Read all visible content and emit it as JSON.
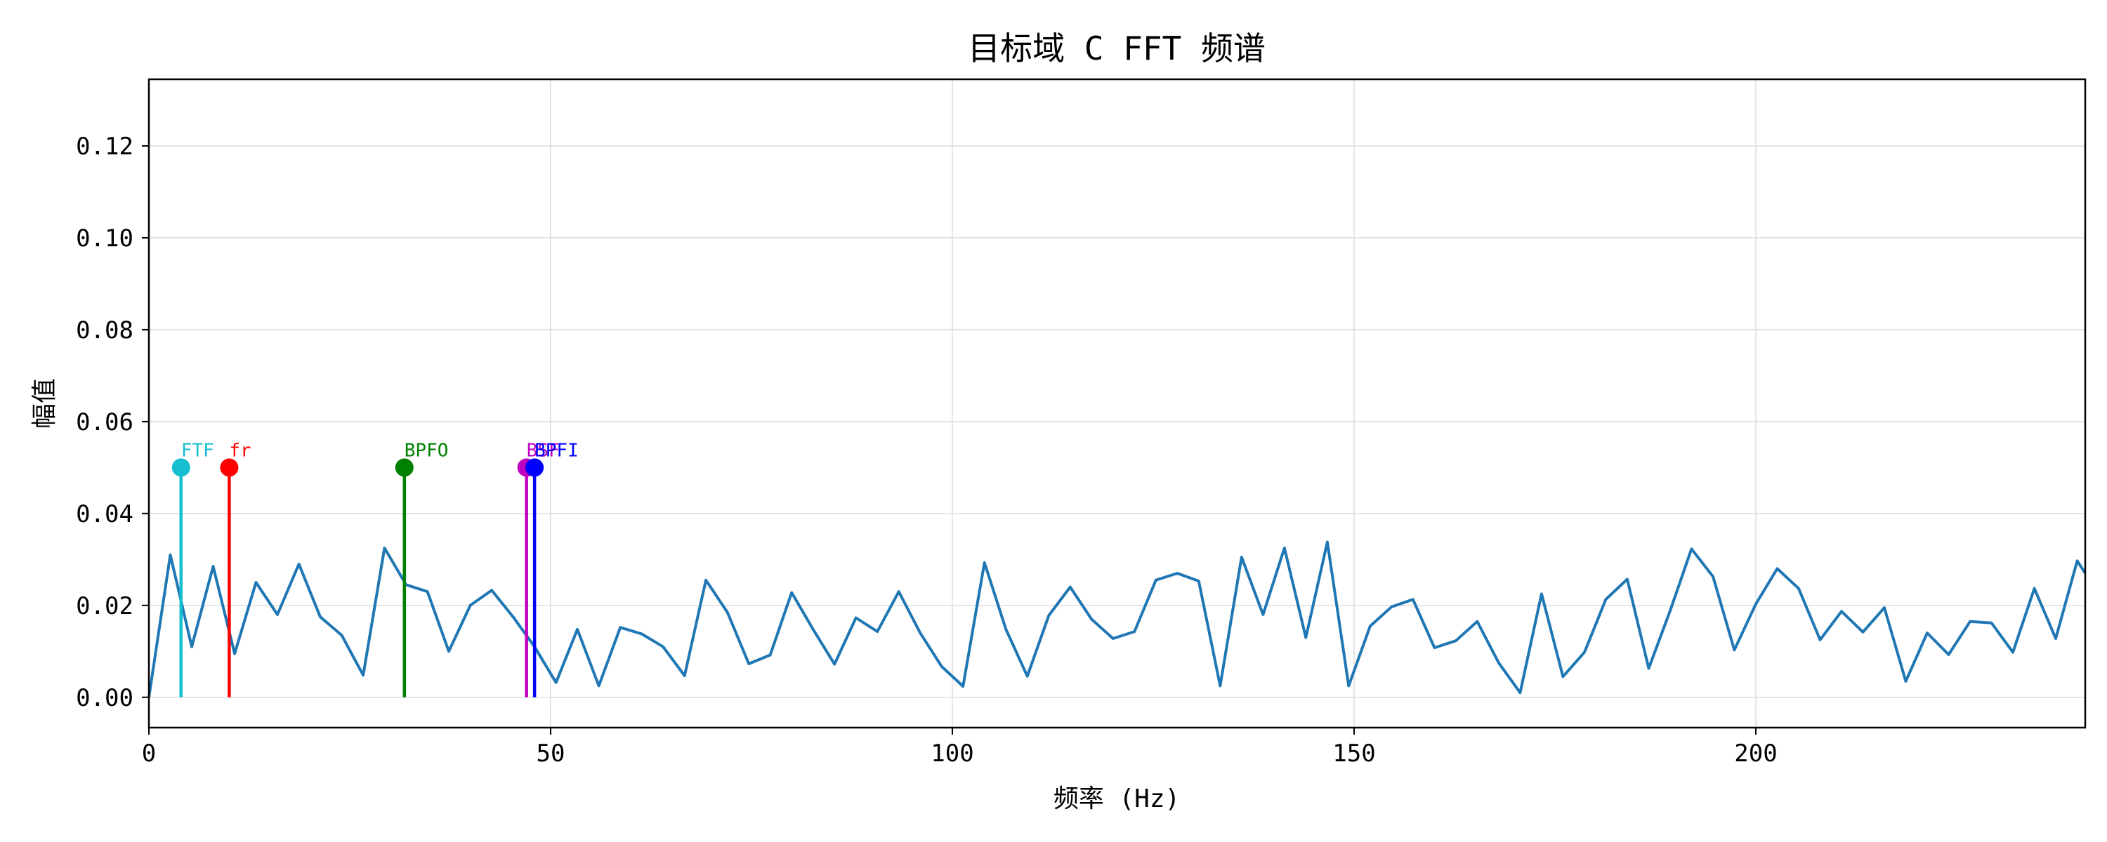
{
  "chart_data": {
    "type": "line",
    "title": "目标域 C FFT 频谱",
    "xlabel": "频率 (Hz)",
    "ylabel": "幅值",
    "xlim": [
      0,
      241
    ],
    "ylim": [
      -0.0066,
      0.1345
    ],
    "grid": true,
    "x_ticks": [
      {
        "value": 0,
        "label": "0"
      },
      {
        "value": 50,
        "label": "50"
      },
      {
        "value": 100,
        "label": "100"
      },
      {
        "value": 150,
        "label": "150"
      },
      {
        "value": 200,
        "label": "200"
      }
    ],
    "y_ticks": [
      {
        "value": 0.0,
        "label": "0.00"
      },
      {
        "value": 0.02,
        "label": "0.02"
      },
      {
        "value": 0.04,
        "label": "0.04"
      },
      {
        "value": 0.06,
        "label": "0.06"
      },
      {
        "value": 0.08,
        "label": "0.08"
      },
      {
        "value": 0.1,
        "label": "0.10"
      },
      {
        "value": 0.12,
        "label": "0.12"
      }
    ],
    "series": [
      {
        "color": "#1f77b4",
        "x": [
          0,
          2.67,
          5.33,
          8,
          10.67,
          13.33,
          16,
          18.67,
          21.33,
          24,
          26.67,
          29.33,
          32,
          34.67,
          37.33,
          40,
          42.67,
          45.33,
          48,
          50.67,
          53.33,
          56,
          58.67,
          61.33,
          64,
          66.67,
          69.33,
          72,
          74.67,
          77.33,
          80,
          82.67,
          85.33,
          88,
          90.67,
          93.33,
          96,
          98.67,
          101.33,
          104,
          106.67,
          109.33,
          112,
          114.67,
          117.33,
          120,
          122.67,
          125.33,
          128,
          130.67,
          133.33,
          136,
          138.67,
          141.33,
          144,
          146.67,
          149.33,
          152,
          154.67,
          157.33,
          160,
          162.67,
          165.33,
          168,
          170.67,
          173.33,
          176,
          178.67,
          181.33,
          184,
          186.67,
          189.33,
          192,
          194.67,
          197.33,
          200,
          202.67,
          205.33,
          208,
          210.67,
          213.33,
          216,
          218.67,
          221.33,
          224,
          226.67,
          229.33,
          232,
          234.67,
          237.33,
          240,
          241
        ],
        "y": [
          0.0,
          0.031,
          0.011,
          0.0285,
          0.0095,
          0.025,
          0.018,
          0.029,
          0.0175,
          0.0135,
          0.0048,
          0.0325,
          0.0245,
          0.023,
          0.01,
          0.02,
          0.0233,
          0.0175,
          0.011,
          0.0032,
          0.0148,
          0.0025,
          0.0152,
          0.0138,
          0.011,
          0.0047,
          0.0255,
          0.0185,
          0.0073,
          0.0092,
          0.0228,
          0.0148,
          0.0072,
          0.0173,
          0.0143,
          0.023,
          0.014,
          0.0067,
          0.0024,
          0.0293,
          0.0148,
          0.0046,
          0.0178,
          0.024,
          0.017,
          0.0128,
          0.0143,
          0.0255,
          0.027,
          0.0253,
          0.0025,
          0.0305,
          0.018,
          0.0325,
          0.013,
          0.0338,
          0.0025,
          0.0155,
          0.0197,
          0.0213,
          0.0108,
          0.0123,
          0.0165,
          0.0075,
          0.001,
          0.0225,
          0.0045,
          0.0098,
          0.0213,
          0.0257,
          0.0063,
          0.0188,
          0.0323,
          0.0263,
          0.0103,
          0.0203,
          0.028,
          0.0237,
          0.0125,
          0.0187,
          0.0142,
          0.0195,
          0.0035,
          0.014,
          0.0093,
          0.0165,
          0.0162,
          0.0098,
          0.0237,
          0.0128,
          0.0297,
          0.027
        ]
      }
    ],
    "markers": [
      {
        "label": "FTF",
        "x": 4.0,
        "y": 0.05,
        "color": "#17becf"
      },
      {
        "label": "fr",
        "x": 10.0,
        "y": 0.05,
        "color": "#ff0000"
      },
      {
        "label": "BPFO",
        "x": 31.8,
        "y": 0.05,
        "color": "#008000"
      },
      {
        "label": "BSF",
        "x": 47.0,
        "y": 0.05,
        "color": "#bf00bf"
      },
      {
        "label": "BPFI",
        "x": 48.0,
        "y": 0.05,
        "color": "#0000ff"
      }
    ]
  }
}
